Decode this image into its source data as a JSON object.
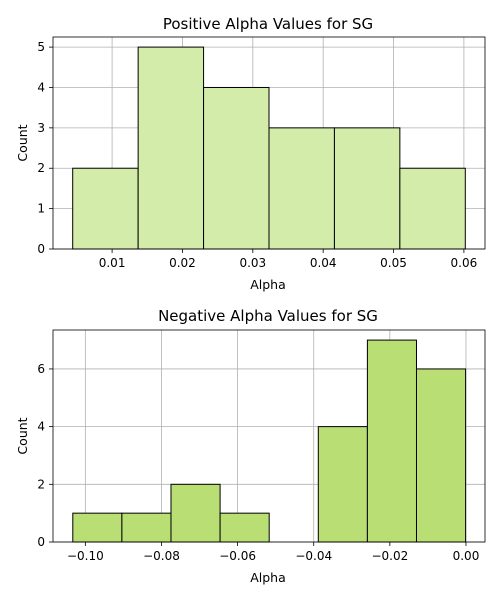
{
  "chart_data": [
    {
      "type": "bar",
      "title": "Positive Alpha Values for SG",
      "xlabel": "Alpha",
      "ylabel": "Count",
      "bin_edges": [
        0.0044,
        0.0137,
        0.023,
        0.0323,
        0.0416,
        0.0509,
        0.0602
      ],
      "values": [
        2,
        5,
        4,
        3,
        3,
        2
      ],
      "xlim": [
        0.0016,
        0.063
      ],
      "ylim": [
        0,
        5.25
      ],
      "xticks": [
        0.01,
        0.02,
        0.03,
        0.04,
        0.05,
        0.06
      ],
      "xtick_labels": [
        "0.01",
        "0.02",
        "0.03",
        "0.04",
        "0.05",
        "0.06"
      ],
      "yticks": [
        0,
        1,
        2,
        3,
        4,
        5
      ],
      "ytick_labels": [
        "0",
        "1",
        "2",
        "3",
        "4",
        "5"
      ],
      "grid": true,
      "bar_color": "#d4ecaa"
    },
    {
      "type": "bar",
      "title": "Negative Alpha Values for SG",
      "xlabel": "Alpha",
      "ylabel": "Count",
      "bin_edges": [
        -0.1033,
        -0.0904,
        -0.0775,
        -0.0646,
        -0.0517,
        -0.0388,
        -0.0259,
        -0.013,
        -0.0001
      ],
      "values": [
        1,
        1,
        2,
        1,
        0,
        4,
        7,
        6
      ],
      "xlim": [
        -0.1085,
        0.005
      ],
      "ylim": [
        0,
        7.35
      ],
      "xticks": [
        -0.1,
        -0.08,
        -0.06,
        -0.04,
        -0.02,
        0.0
      ],
      "xtick_labels": [
        "−0.10",
        "−0.08",
        "−0.06",
        "−0.04",
        "−0.02",
        "0.00"
      ],
      "yticks": [
        0,
        2,
        4,
        6
      ],
      "ytick_labels": [
        "0",
        "2",
        "4",
        "6"
      ],
      "grid": true,
      "bar_color": "#b9df74"
    }
  ]
}
